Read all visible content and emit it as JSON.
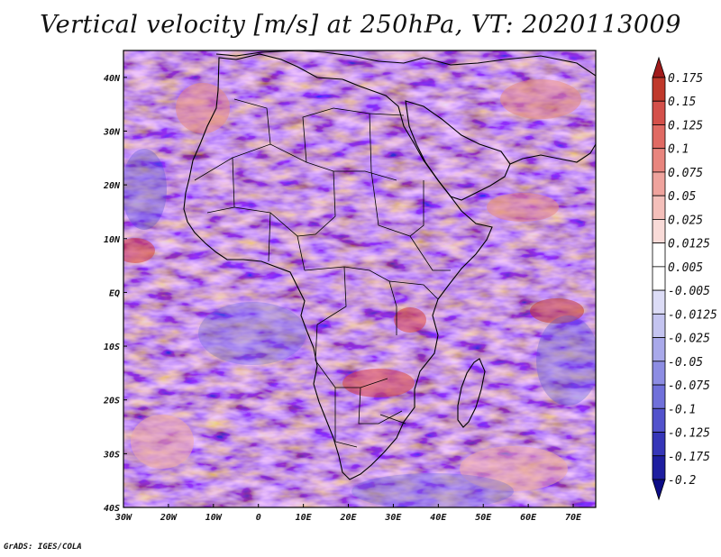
{
  "title": "Vertical velocity [m/s] at 250hPa, VT: 2020113009",
  "credit": "GrADS: IGES/COLA",
  "chart_data": {
    "type": "heatmap",
    "variable": "vertical velocity",
    "units": "m/s",
    "level": "250hPa",
    "valid_time": "2020113009",
    "x_axis": {
      "range": [
        -30,
        75
      ],
      "ticks": [
        -30,
        -20,
        -10,
        0,
        10,
        20,
        30,
        40,
        50,
        60,
        70
      ],
      "tick_labels": [
        "30W",
        "20W",
        "10W",
        "0",
        "10E",
        "20E",
        "30E",
        "40E",
        "50E",
        "60E",
        "70E"
      ]
    },
    "y_axis": {
      "range": [
        -40,
        45
      ],
      "ticks": [
        40,
        30,
        20,
        10,
        0,
        -10,
        -20,
        -30,
        -40
      ],
      "tick_labels": [
        "40N",
        "30N",
        "20N",
        "10N",
        "EQ",
        "10S",
        "20S",
        "30S",
        "40S"
      ]
    },
    "colorbar": {
      "labels": [
        "0.175",
        "0.15",
        "0.125",
        "0.1",
        "0.075",
        "0.05",
        "0.025",
        "0.0125",
        "0.005",
        "-0.005",
        "-0.0125",
        "-0.025",
        "-0.05",
        "-0.075",
        "-0.1",
        "-0.125",
        "-0.175",
        "-0.2"
      ],
      "colors": [
        "#a01b1b",
        "#c0392b",
        "#d4504a",
        "#e06a63",
        "#e8857e",
        "#efa39d",
        "#f4bfba",
        "#f9dbd8",
        "#ffffff",
        "#ffffff",
        "#dcdcf6",
        "#c4c4f0",
        "#a9a9ea",
        "#8d8de3",
        "#7070da",
        "#5252cc",
        "#3636b8",
        "#1e1ea0",
        "#0c0c86"
      ]
    }
  }
}
